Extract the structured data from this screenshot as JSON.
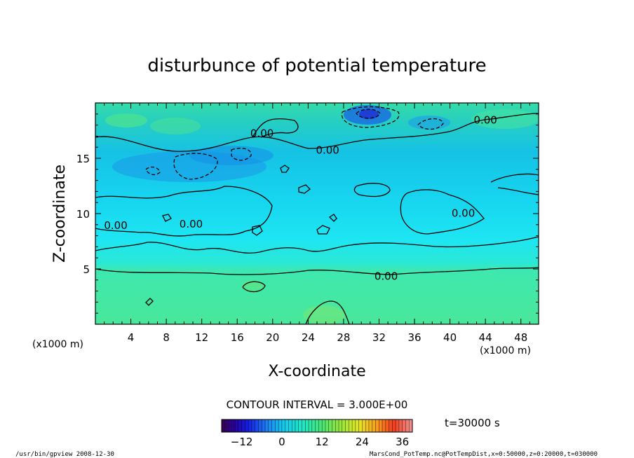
{
  "chart_data": {
    "type": "heatmap",
    "title": "disturbunce of potential temperature",
    "xlabel": "X-coordinate",
    "ylabel": "Z-coordinate",
    "x_unit_left": "(x1000 m)",
    "x_unit_right": "(x1000 m)",
    "xlim": [
      0,
      50
    ],
    "ylim": [
      0,
      20
    ],
    "xticks": [
      4,
      8,
      12,
      16,
      20,
      24,
      28,
      32,
      36,
      40,
      44,
      48
    ],
    "yticks": [
      5,
      10,
      15
    ],
    "contour_interval_text": "CONTOUR INTERVAL = 3.000E+00",
    "time_text": "t=30000 s",
    "contour_labels": [
      {
        "text": "0.00",
        "x": 18.8,
        "z": 17.3
      },
      {
        "text": "0.00",
        "x": 26.2,
        "z": 15.8
      },
      {
        "text": "0.00",
        "x": 44.0,
        "z": 18.5
      },
      {
        "text": "0.00",
        "x": 2.3,
        "z": 9.0
      },
      {
        "text": "0.00",
        "x": 10.8,
        "z": 9.1
      },
      {
        "text": "0.00",
        "x": 41.5,
        "z": 10.1
      },
      {
        "text": "0.00",
        "x": 32.8,
        "z": 4.4
      }
    ],
    "colorbar": {
      "min": -18,
      "max": 39,
      "ticks": [
        -12,
        0,
        12,
        24,
        36
      ]
    },
    "grid": false,
    "legend": "none"
  },
  "footer": {
    "left": "/usr/bin/gpview   2008-12-30",
    "right": "MarsCond_PotTemp.nc@PotTempDist,x=0:50000,z=0:20000,t=030000"
  }
}
